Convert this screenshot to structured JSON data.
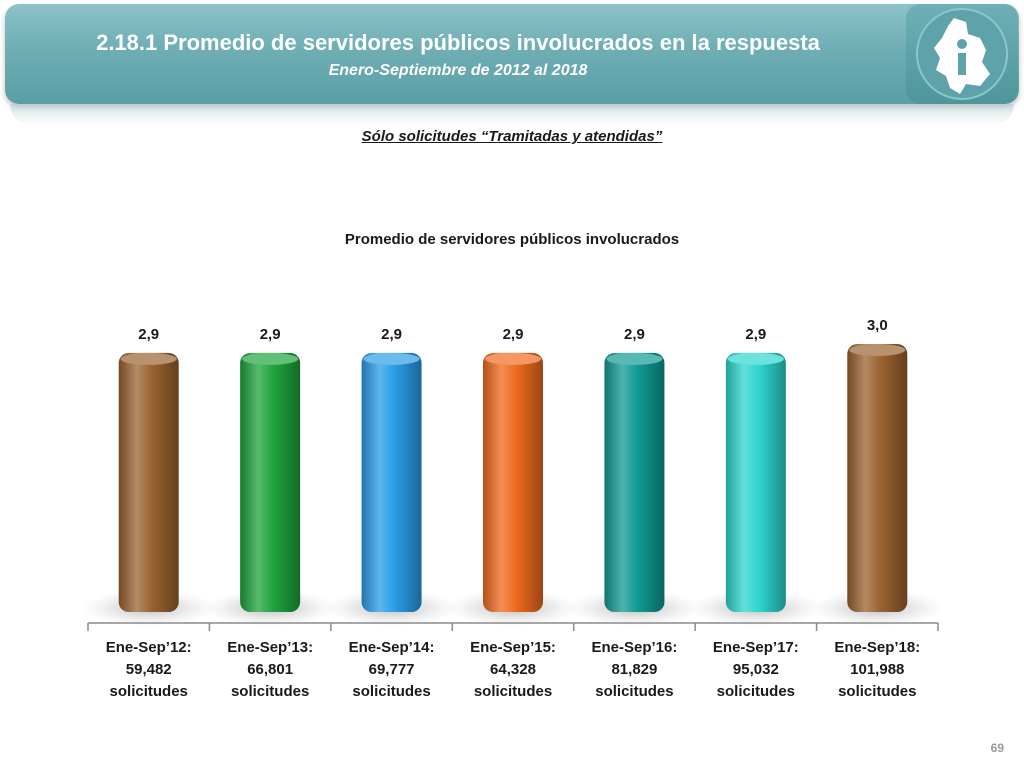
{
  "header": {
    "title": "2.18.1 Promedio de servidores públicos involucrados en la respuesta",
    "subtitle": "Enero-Septiembre de 2012 al 2018"
  },
  "filter_note": "Sólo solicitudes “Tramitadas y atendidas”",
  "page_number": "69",
  "colors": {
    "banner": "#6eaeb4",
    "bars": [
      "#9a6330",
      "#1fa33e",
      "#2a9de6",
      "#f06a1e",
      "#119a94",
      "#2dd6d0",
      "#9a6330"
    ]
  },
  "chart_data": {
    "type": "bar",
    "title": "Promedio de servidores públicos involucrados",
    "categories": [
      [
        "Ene-Sep’12:",
        "59,482",
        "solicitudes"
      ],
      [
        "Ene-Sep’13:",
        "66,801",
        "solicitudes"
      ],
      [
        "Ene-Sep’14:",
        "69,777",
        "solicitudes"
      ],
      [
        "Ene-Sep’15:",
        "64,328",
        "solicitudes"
      ],
      [
        "Ene-Sep’16:",
        "81,829",
        "solicitudes"
      ],
      [
        "Ene-Sep’17:",
        "95,032",
        "solicitudes"
      ],
      [
        "Ene-Sep’18:",
        "101,988",
        "solicitudes"
      ]
    ],
    "values": [
      2.9,
      2.9,
      2.9,
      2.9,
      2.9,
      2.9,
      3.0
    ],
    "data_labels": [
      "2,9",
      "2,9",
      "2,9",
      "2,9",
      "2,9",
      "2,9",
      "3,0"
    ],
    "ylim": [
      0,
      3.0
    ],
    "grid": false,
    "legend": "none",
    "xlabel": "",
    "ylabel": ""
  }
}
